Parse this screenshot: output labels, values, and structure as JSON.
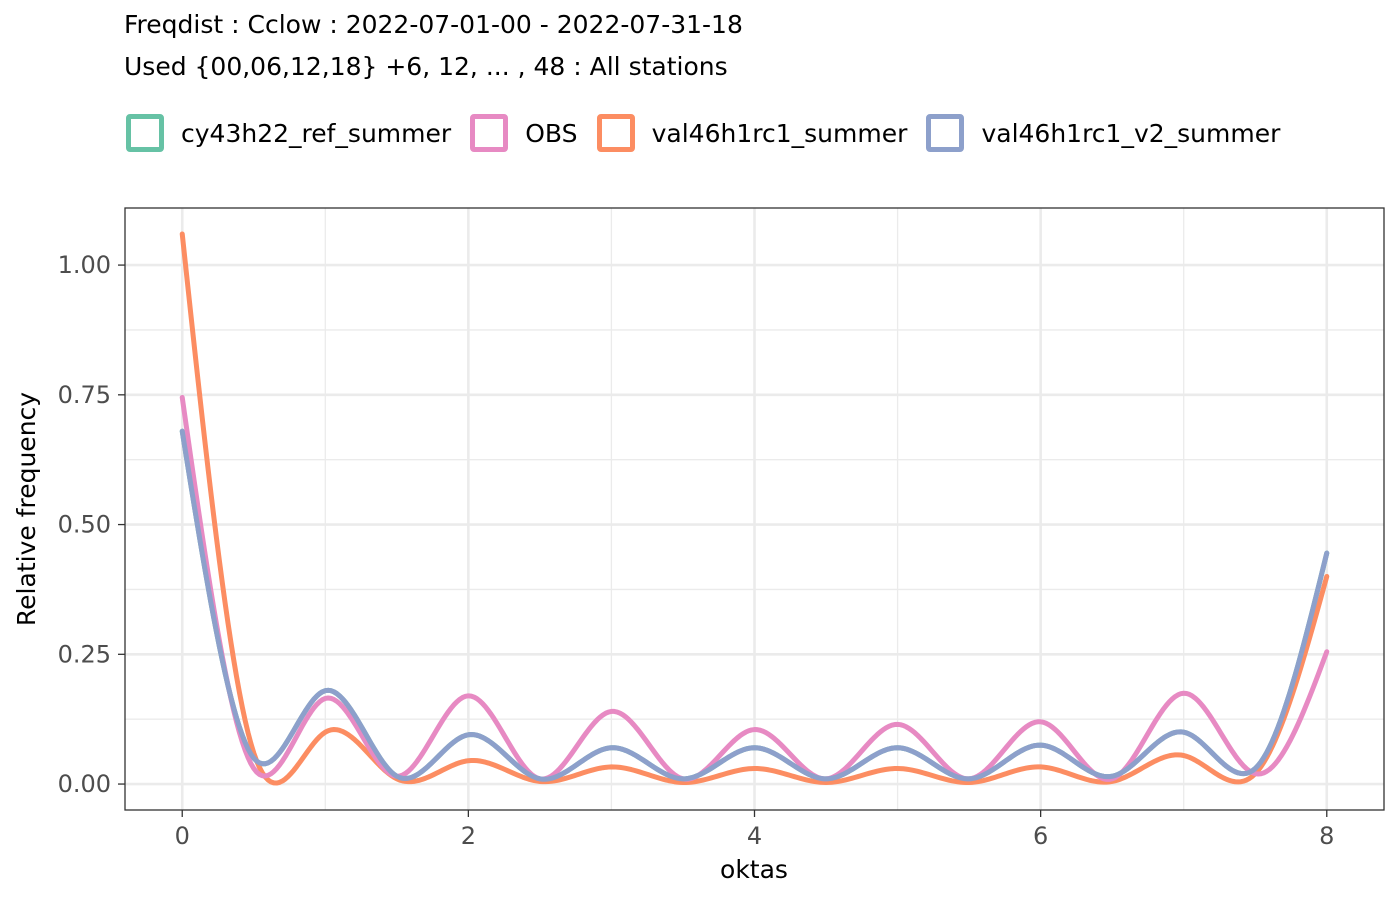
{
  "chart_data": {
    "type": "line",
    "title": "Freqdist : Cclow : 2022-07-01-00 - 2022-07-31-18",
    "subtitle": "Used {00,06,12,18} +6, 12, ... , 48 : All stations",
    "xlabel": "oktas",
    "ylabel": "Relative frequency",
    "xlim": [
      -0.4,
      8.4
    ],
    "ylim": [
      -0.05,
      1.11
    ],
    "x_ticks": [
      0,
      2,
      4,
      6,
      8
    ],
    "x_tick_labels": [
      "0",
      "2",
      "4",
      "6",
      "8"
    ],
    "y_ticks": [
      0,
      0.25,
      0.5,
      0.75,
      1.0
    ],
    "y_tick_labels": [
      "0.00",
      "0.25",
      "0.50",
      "0.75",
      "1.00"
    ],
    "grid": true,
    "legend_position": "top",
    "series": [
      {
        "name": "cy43h22_ref_summer",
        "color": "#66c2a5",
        "x": [
          0,
          0.5,
          1,
          1.5,
          2,
          2.5,
          3,
          3.5,
          4,
          4.5,
          5,
          5.5,
          6,
          6.5,
          7,
          7.5,
          8
        ],
        "y": [
          0.68,
          0.05,
          0.18,
          0.015,
          0.095,
          0.01,
          0.07,
          0.01,
          0.07,
          0.01,
          0.07,
          0.01,
          0.075,
          0.015,
          0.1,
          0.03,
          0.445
        ]
      },
      {
        "name": "OBS",
        "color": "#e78ac3",
        "x": [
          0,
          0.5,
          1,
          1.5,
          2,
          2.5,
          3,
          3.5,
          4,
          4.5,
          5,
          5.5,
          6,
          6.5,
          7,
          7.5,
          8
        ],
        "y": [
          0.745,
          0.03,
          0.165,
          0.015,
          0.17,
          0.01,
          0.14,
          0.01,
          0.105,
          0.01,
          0.115,
          0.01,
          0.12,
          0.01,
          0.175,
          0.02,
          0.255
        ]
      },
      {
        "name": "val46h1rc1_summer",
        "color": "#fc8d62",
        "x": [
          0,
          0.5,
          1,
          1.5,
          2,
          2.5,
          3,
          3.5,
          4,
          4.5,
          5,
          5.5,
          6,
          6.5,
          7,
          7.5,
          8
        ],
        "y": [
          1.06,
          0.06,
          0.1,
          0.01,
          0.045,
          0.005,
          0.033,
          0.003,
          0.03,
          0.003,
          0.03,
          0.003,
          0.033,
          0.005,
          0.055,
          0.02,
          0.4
        ]
      },
      {
        "name": "val46h1rc1_v2_summer",
        "color": "#8da0cb",
        "x": [
          0,
          0.5,
          1,
          1.5,
          2,
          2.5,
          3,
          3.5,
          4,
          4.5,
          5,
          5.5,
          6,
          6.5,
          7,
          7.5,
          8
        ],
        "y": [
          0.68,
          0.05,
          0.18,
          0.015,
          0.095,
          0.01,
          0.07,
          0.01,
          0.07,
          0.01,
          0.07,
          0.01,
          0.075,
          0.015,
          0.1,
          0.03,
          0.445
        ]
      }
    ]
  }
}
